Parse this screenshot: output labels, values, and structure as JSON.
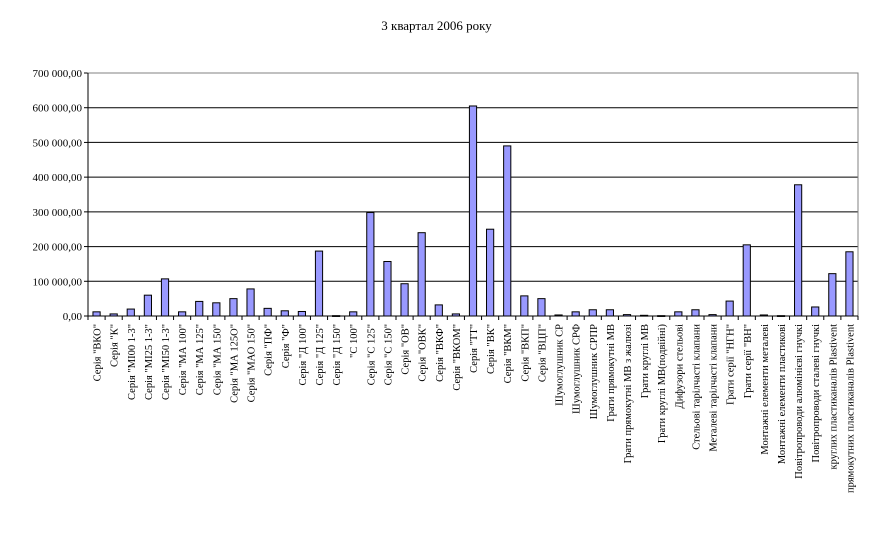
{
  "chart_data": {
    "type": "bar",
    "title": "3 квартал 2006 року",
    "xlabel": "",
    "ylabel": "",
    "ylim": [
      0,
      700000
    ],
    "yticks": [
      "0,00",
      "100 000,00",
      "200 000,00",
      "300 000,00",
      "400 000,00",
      "500 000,00",
      "600 000,00",
      "700 000,00"
    ],
    "ytick_values": [
      0,
      100000,
      200000,
      300000,
      400000,
      500000,
      600000,
      700000
    ],
    "grid": "horizontal",
    "legend": "none",
    "bar_color": "#9999ff",
    "categories": [
      "Серія \"ВКО\"",
      "Серія \"К\"",
      "Серія \"МІ00 1-3\"",
      "Серія \"МІ25 1-3\"",
      "Серія \"МІ50 1-3\"",
      "Серія \"МА 100\"",
      "Серія \"МА 125\"",
      "Серія \"МА 150\"",
      "Серія \"МА 125О\"",
      "Серія \"МАО 150\"",
      "Серія \"ПФ\"",
      "Серія \"Ф\"",
      "Серія \"Д 100\"",
      "Серія \"Д 125\"",
      "Серія \"Д 150\"",
      "\"С 100\"",
      "Серія \"С 125\"",
      "Серія \"С 150\"",
      "Серія \"ОВ\"",
      "Серія \"ОВК\"",
      "Серія \"ВКФ\"",
      "Серія \"ВКОМ\"",
      "Серія \"ТТ\"",
      "Серія \"ВК\"",
      "Серія \"ВКМ\"",
      "Серія \"ВКП\"",
      "Серія \"ВЦП\"",
      "Шумоглушник СР",
      "Шумоглушник СРФ",
      "Шумоглушник СРПР",
      "Грати прямокутні МВ",
      "Грати прямокутні МВ з жалюзі",
      "Грати круглі МВ",
      "Грати круглі МВ(подвійні)",
      "Дифузори стельові",
      "Стельові тарілчасті клапани",
      "Металеві тарілчасті клапани",
      "Грати серії \"НГН\"",
      "Грати серії \"ВН\"",
      "Монтажні елементи металеві",
      "Монтажні елементи пластикові",
      "Повітропроводи алюмінієві гнучкі",
      "Повітропроводи сталеві гнучкі",
      "круглих пластиканалів Plastivent",
      "прямокутних пластиканалів Plastivent"
    ],
    "values": [
      12000,
      6000,
      20000,
      60000,
      107000,
      12000,
      42000,
      38000,
      50000,
      78000,
      22000,
      15000,
      13000,
      187000,
      1000,
      12000,
      298000,
      157000,
      93000,
      240000,
      32000,
      6000,
      605000,
      250000,
      490000,
      58000,
      50000,
      3000,
      12000,
      18000,
      18000,
      4000,
      2000,
      1000,
      12000,
      18000,
      4000,
      43000,
      205000,
      3000,
      1000,
      378000,
      26000,
      122000,
      185000
    ]
  }
}
